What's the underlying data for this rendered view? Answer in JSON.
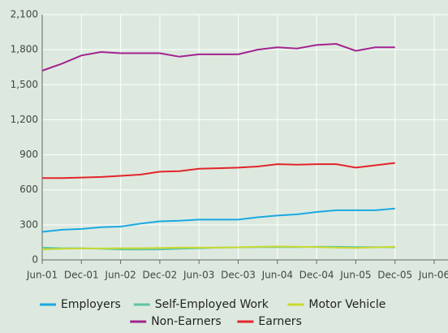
{
  "chart_data": {
    "type": "line",
    "categories": [
      "Jun-01",
      null,
      "Dec-01",
      null,
      "Jun-02",
      null,
      "Dec-02",
      null,
      "Jun-03",
      null,
      "Dec-03",
      null,
      "Jun-04",
      null,
      "Dec-04",
      null,
      "Jun-05",
      null,
      "Dec-05",
      null,
      "Jun-06"
    ],
    "series": [
      {
        "name": "Employers",
        "color": "#1aa9e0",
        "values": [
          240,
          258,
          265,
          280,
          285,
          310,
          330,
          335,
          345,
          345,
          345,
          365,
          380,
          390,
          410,
          425,
          425,
          425,
          440,
          null,
          null
        ]
      },
      {
        "name": "Self-Employed Work",
        "color": "#5fc3a7",
        "values": [
          105,
          100,
          100,
          95,
          90,
          88,
          90,
          95,
          100,
          105,
          108,
          110,
          110,
          110,
          112,
          112,
          110,
          110,
          108,
          null,
          null
        ]
      },
      {
        "name": "Motor Vehicle",
        "color": "#c8d930",
        "values": [
          90,
          95,
          98,
          98,
          100,
          100,
          102,
          105,
          105,
          105,
          108,
          112,
          115,
          112,
          110,
          105,
          102,
          108,
          112,
          null,
          null
        ]
      },
      {
        "name": "Non-Earners",
        "color": "#a3238f",
        "values": [
          1620,
          1680,
          1750,
          1780,
          1770,
          1770,
          1770,
          1740,
          1760,
          1760,
          1760,
          1800,
          1820,
          1810,
          1840,
          1850,
          1790,
          1820,
          1820,
          null,
          null
        ]
      },
      {
        "name": "Earners",
        "color": "#e3242b",
        "values": [
          700,
          700,
          705,
          710,
          720,
          730,
          755,
          760,
          780,
          785,
          790,
          800,
          820,
          815,
          820,
          820,
          790,
          810,
          830,
          null,
          null
        ]
      }
    ],
    "ylim": [
      0,
      2100
    ],
    "yticks": [
      0,
      300,
      600,
      900,
      {
        "value": 1200,
        "label": "1,200"
      },
      {
        "value": 1500,
        "label": "1,500"
      },
      {
        "value": 1800,
        "label": "1,800"
      },
      {
        "value": 2100,
        "label": "2,100"
      }
    ],
    "grid": true
  }
}
